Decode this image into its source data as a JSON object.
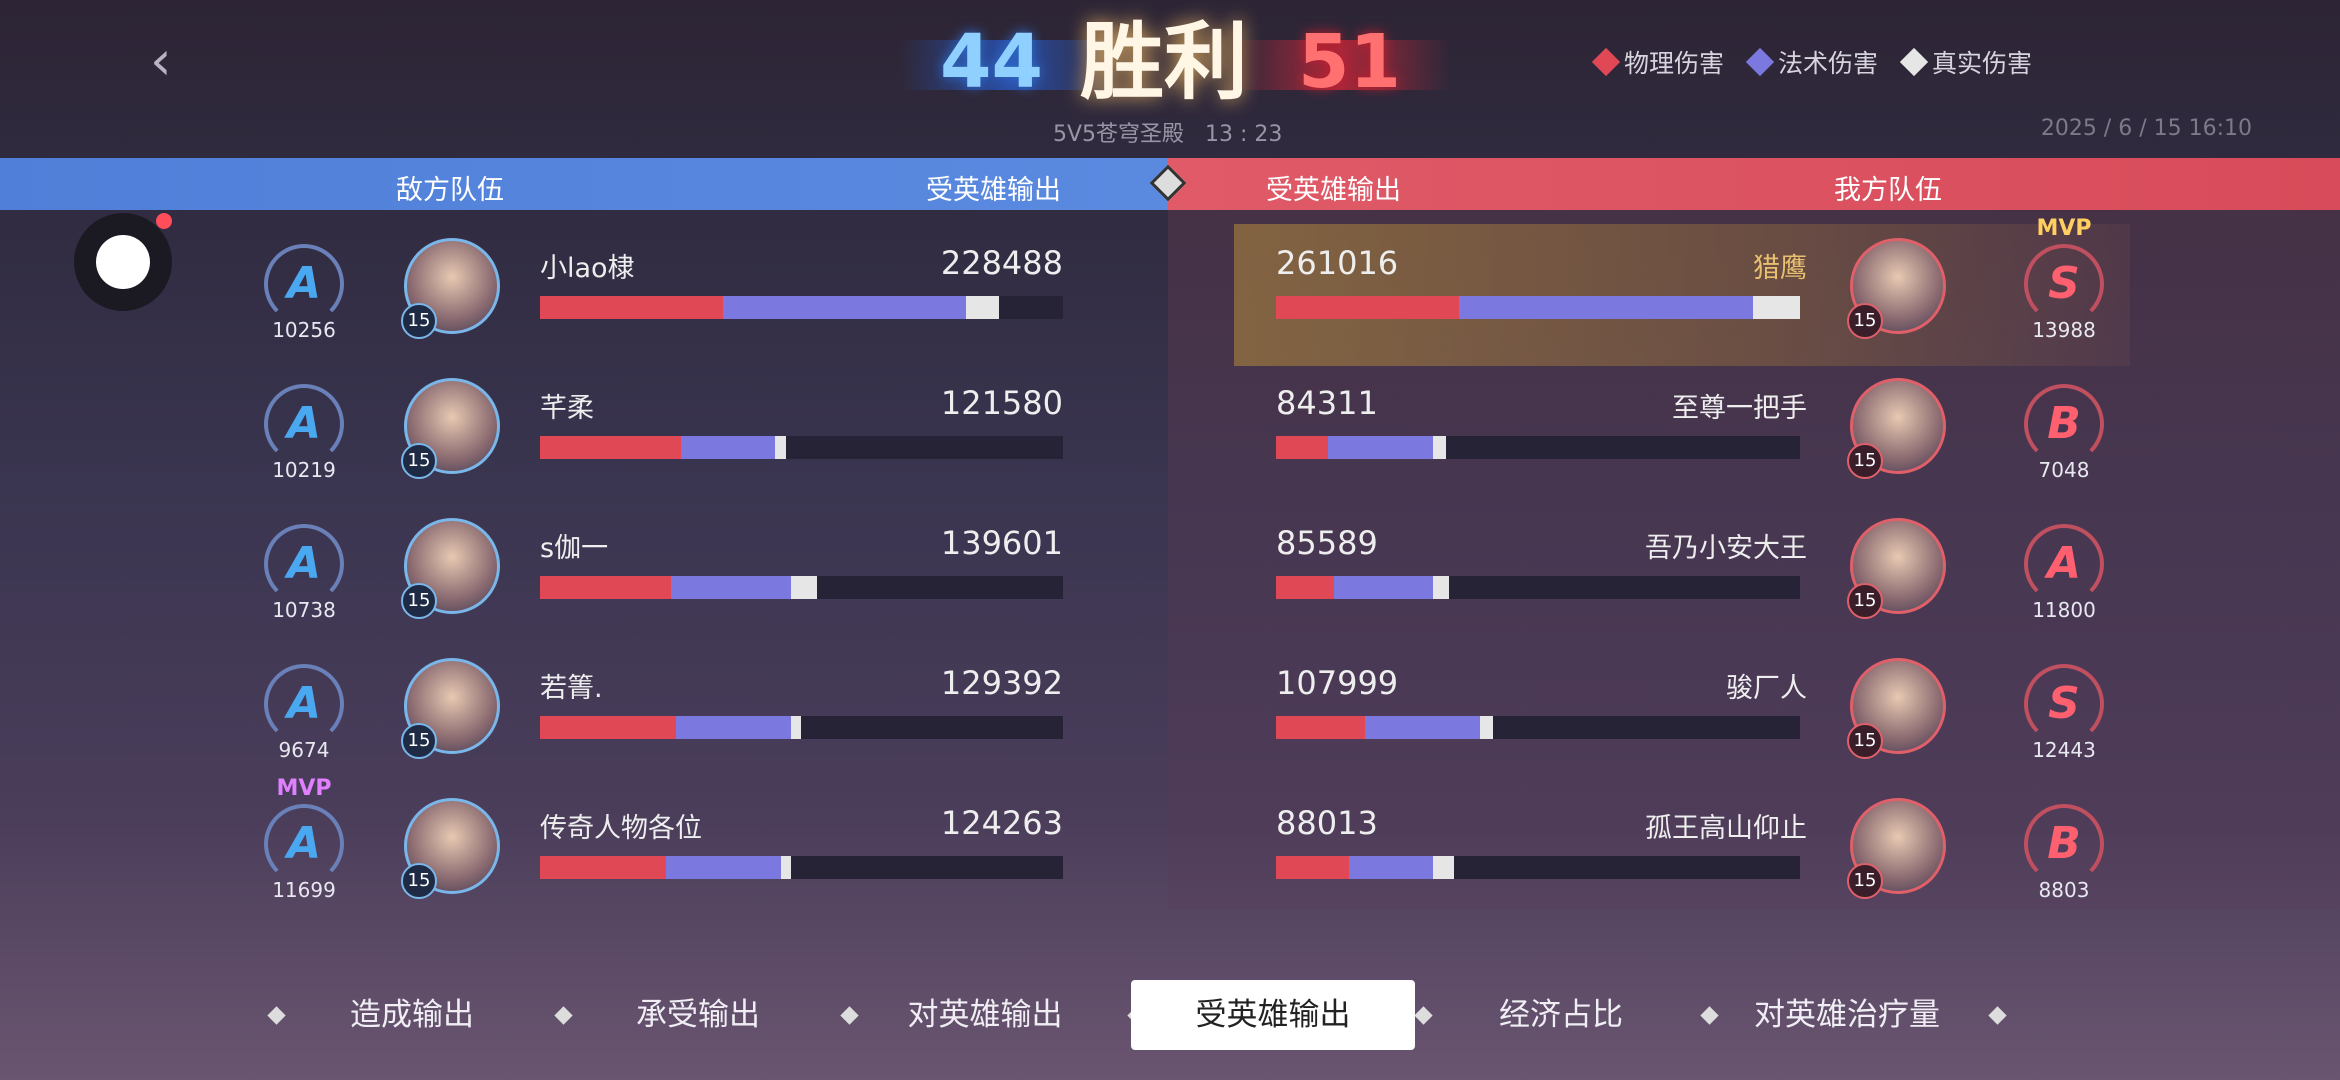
{
  "header": {
    "back_icon": "chevron-left-icon",
    "score_left": "44",
    "result": "胜利",
    "score_right": "51",
    "mode_time": "5V5苍穹圣殿   13 : 23",
    "date": "2025 / 6 / 15 16:10"
  },
  "legend": [
    {
      "label": "物理伤害",
      "color": "#e04856"
    },
    {
      "label": "法术伤害",
      "color": "#7b78e0"
    },
    {
      "label": "真实伤害",
      "color": "#e6e6e6"
    }
  ],
  "teams": {
    "left_label": "敌方队伍",
    "left_metric": "受英雄输出",
    "right_metric": "受英雄输出",
    "right_label": "我方队伍"
  },
  "colors": {
    "physical": "#e04856",
    "magic": "#7b78e0",
    "true": "#e6e6e6",
    "left_team": "#5a8ae0",
    "right_team": "#dc5060"
  },
  "enemy": [
    {
      "name": "小lao棣",
      "value": "228488",
      "grade": "A",
      "rating": "10256",
      "level": "15",
      "mvp": "",
      "bar": {
        "physical": 0.35,
        "magic": 0.464,
        "true": 0.063
      }
    },
    {
      "name": "芊柔",
      "value": "121580",
      "grade": "A",
      "rating": "10219",
      "level": "15",
      "mvp": "",
      "bar": {
        "physical": 0.27,
        "magic": 0.18,
        "true": 0.02
      }
    },
    {
      "name": "s伽一",
      "value": "139601",
      "grade": "A",
      "rating": "10738",
      "level": "15",
      "mvp": "",
      "bar": {
        "physical": 0.25,
        "magic": 0.23,
        "true": 0.05
      }
    },
    {
      "name": "若箐.",
      "value": "129392",
      "grade": "A",
      "rating": "9674",
      "level": "15",
      "mvp": "",
      "bar": {
        "physical": 0.26,
        "magic": 0.22,
        "true": 0.02
      }
    },
    {
      "name": "传奇人物各位",
      "value": "124263",
      "grade": "A",
      "rating": "11699",
      "level": "15",
      "mvp": "MVP",
      "bar": {
        "physical": 0.24,
        "magic": 0.22,
        "true": 0.02
      }
    }
  ],
  "ally": [
    {
      "name": "猎鹰",
      "value": "261016",
      "grade": "S",
      "rating": "13988",
      "level": "15",
      "mvp": "MVP",
      "bar": {
        "physical": 0.35,
        "magic": 0.56,
        "true": 0.09
      }
    },
    {
      "name": "至尊一把手",
      "value": "84311",
      "grade": "B",
      "rating": "7048",
      "level": "15",
      "mvp": "",
      "bar": {
        "physical": 0.1,
        "magic": 0.2,
        "true": 0.025
      }
    },
    {
      "name": "吾乃小安大王",
      "value": "85589",
      "grade": "A",
      "rating": "11800",
      "level": "15",
      "mvp": "",
      "bar": {
        "physical": 0.11,
        "magic": 0.19,
        "true": 0.03
      }
    },
    {
      "name": "骏厂人",
      "value": "107999",
      "grade": "S",
      "rating": "12443",
      "level": "15",
      "mvp": "",
      "bar": {
        "physical": 0.17,
        "magic": 0.22,
        "true": 0.025
      }
    },
    {
      "name": "孤王高山仰止",
      "value": "88013",
      "grade": "B",
      "rating": "8803",
      "level": "15",
      "mvp": "",
      "bar": {
        "physical": 0.14,
        "magic": 0.16,
        "true": 0.04
      }
    }
  ],
  "tabs": [
    {
      "label": "造成输出"
    },
    {
      "label": "承受输出"
    },
    {
      "label": "对英雄输出"
    },
    {
      "label": "受英雄输出",
      "selected": true
    },
    {
      "label": "经济占比"
    },
    {
      "label": "对英雄治疗量"
    }
  ]
}
